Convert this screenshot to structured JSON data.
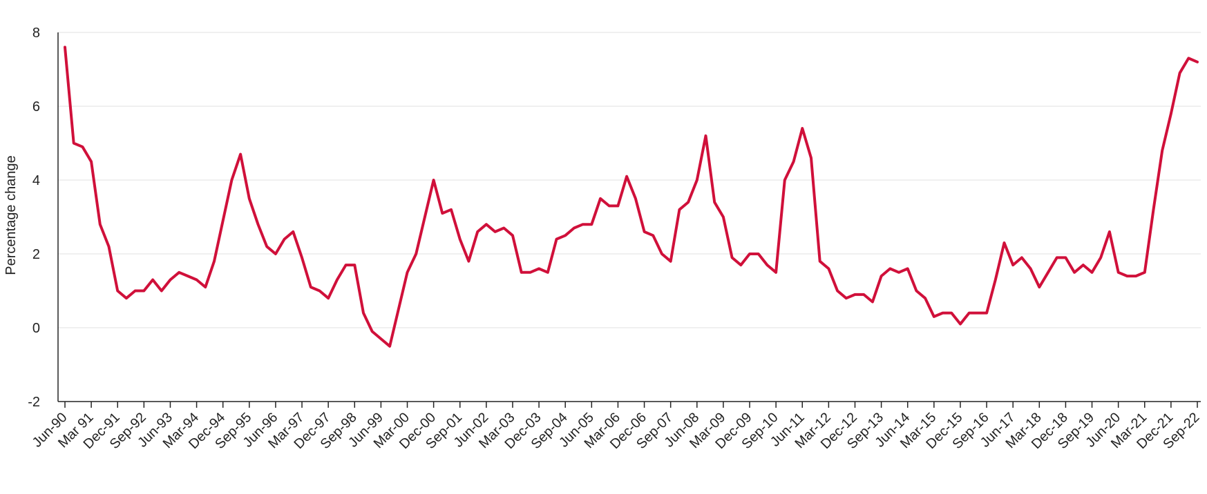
{
  "chart_data": {
    "type": "line",
    "ylabel": "Percentage change",
    "xlabel": "",
    "title": "",
    "ylim": [
      -2,
      8
    ],
    "yticks": [
      -2,
      0,
      2,
      4,
      6,
      8
    ],
    "grid": true,
    "color": "#d0103a",
    "xtick_labels": [
      "Jun-90",
      "Mar 91",
      "Dec-91",
      "Sep-92",
      "Jun-93",
      "Mar-94",
      "Dec-94",
      "Sep-95",
      "Jun-96",
      "Mar-97",
      "Dec-97",
      "Sep-98",
      "Jun-99",
      "Mar-00",
      "Dec-00",
      "Sep-01",
      "Jun-02",
      "Mar-03",
      "Dec-03",
      "Sep-04",
      "Jun-05",
      "Mar-06",
      "Dec-06",
      "Sep-07",
      "Jun-08",
      "Mar-09",
      "Dec-09",
      "Sep-10",
      "Jun-11",
      "Mar-12",
      "Dec-12",
      "Sep-13",
      "Jun-14",
      "Mar-15",
      "Dec-15",
      "Sep-16",
      "Jun-17",
      "Mar-18",
      "Dec-18",
      "Sep-19",
      "Jun-20",
      "Mar-21",
      "Dec-21",
      "Sep-22"
    ],
    "series": [
      {
        "values": [
          7.6,
          5.0,
          4.9,
          4.5,
          2.8,
          2.2,
          1.0,
          0.8,
          1.0,
          1.0,
          1.3,
          1.0,
          1.3,
          1.5,
          1.4,
          1.3,
          1.1,
          1.8,
          2.9,
          4.0,
          4.7,
          3.5,
          2.8,
          2.2,
          2.0,
          2.4,
          2.6,
          1.9,
          1.1,
          1.0,
          0.8,
          1.3,
          1.7,
          1.7,
          0.4,
          -0.1,
          -0.3,
          -0.5,
          0.5,
          1.5,
          2.0,
          3.0,
          4.0,
          3.1,
          3.2,
          2.4,
          1.8,
          2.6,
          2.8,
          2.6,
          2.7,
          2.5,
          1.5,
          1.5,
          1.6,
          1.5,
          2.4,
          2.5,
          2.7,
          2.8,
          2.8,
          3.5,
          3.3,
          3.3,
          4.1,
          3.5,
          2.6,
          2.5,
          2.0,
          1.8,
          3.2,
          3.4,
          4.0,
          5.2,
          3.4,
          3.0,
          1.9,
          1.7,
          2.0,
          2.0,
          1.7,
          1.5,
          4.0,
          4.5,
          5.4,
          4.6,
          1.8,
          1.6,
          1.0,
          0.8,
          0.9,
          0.9,
          0.7,
          1.4,
          1.6,
          1.5,
          1.6,
          1.0,
          0.8,
          0.3,
          0.4,
          0.4,
          0.1,
          0.4,
          0.4,
          0.4,
          1.3,
          2.3,
          1.7,
          1.9,
          1.6,
          1.1,
          1.5,
          1.9,
          1.9,
          1.5,
          1.7,
          1.5,
          1.9,
          2.6,
          1.5,
          1.4,
          1.4,
          1.5,
          3.2,
          4.8,
          5.8,
          6.9,
          7.3,
          7.2
        ]
      }
    ]
  }
}
